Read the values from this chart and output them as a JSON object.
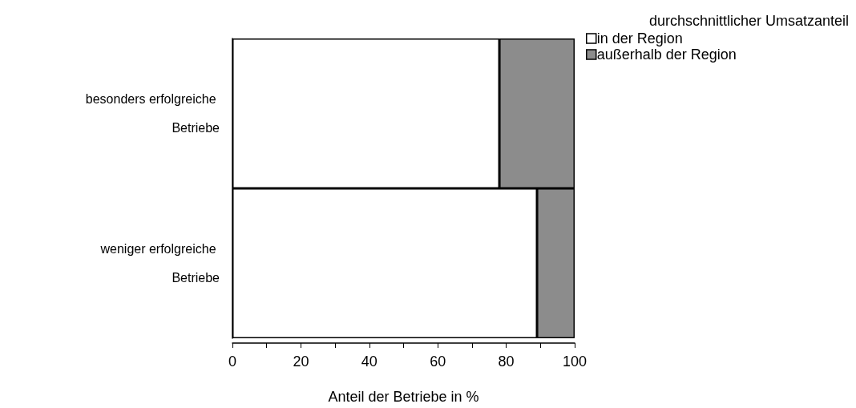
{
  "chart_data": {
    "type": "bar",
    "orientation": "horizontal",
    "stacked": true,
    "categories": [
      "besonders erfolgreiche Betriebe",
      "weniger erfolgreiche Betriebe"
    ],
    "series": [
      {
        "name": "in der Region",
        "color": "#ffffff",
        "values": [
          78,
          89
        ]
      },
      {
        "name": "außerhalb der Region",
        "color": "#8c8c8c",
        "values": [
          22,
          11
        ]
      }
    ],
    "xlabel": "Anteil der Betriebe in %",
    "legend_title": "durchschnittlicher Umsatzanteil",
    "legend": "top right",
    "xlim": [
      0,
      100
    ],
    "xticks": [
      0,
      {
        "value": 10,
        "label": null
      },
      20,
      {
        "value": 30,
        "label": null
      },
      40,
      {
        "value": 50,
        "label": null
      },
      60,
      {
        "value": 70,
        "label": null
      },
      80,
      {
        "value": 90,
        "label": null
      },
      100
    ],
    "grid": false
  }
}
